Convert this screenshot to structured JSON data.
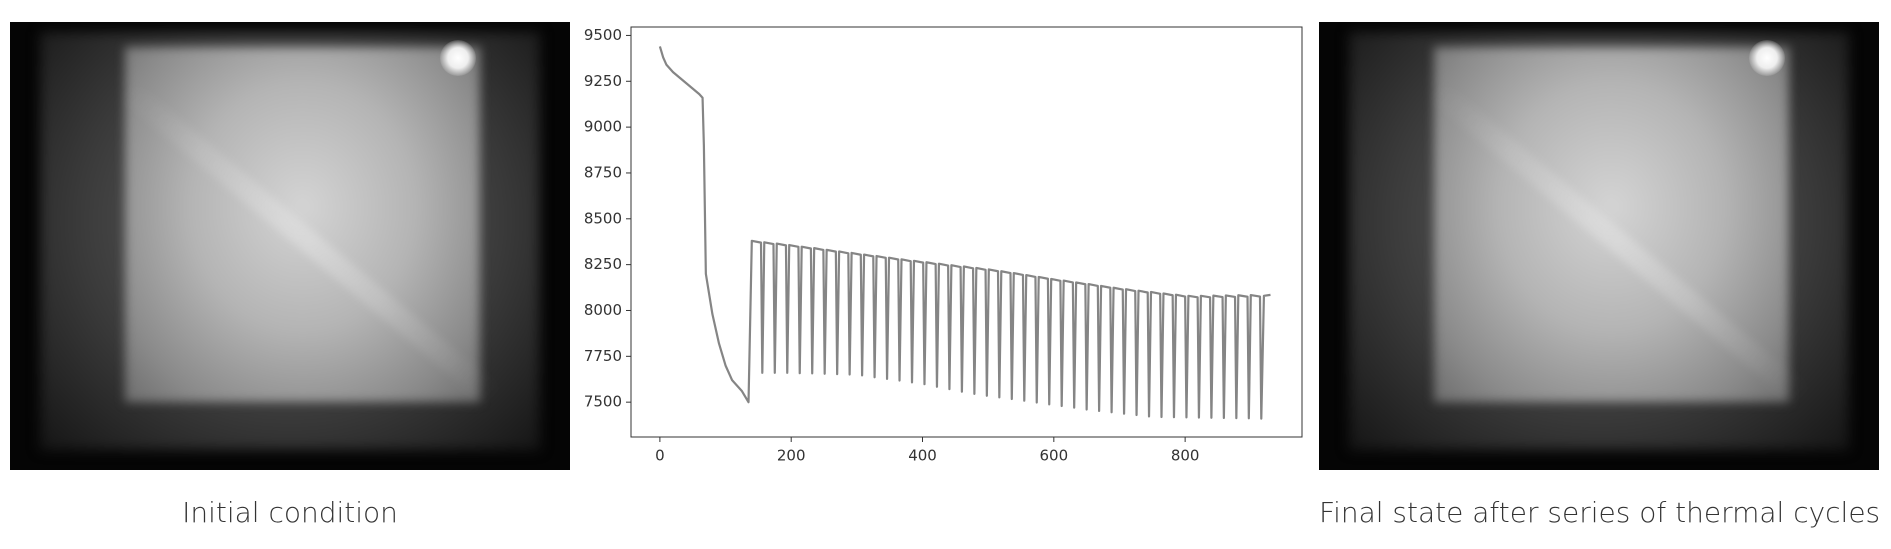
{
  "chart_data": {
    "type": "line",
    "x": [
      0,
      5,
      10,
      20,
      30,
      40,
      50,
      60,
      65,
      67,
      70,
      80,
      90,
      100,
      110,
      125,
      135,
      140,
      154,
      156,
      159,
      173,
      175,
      178,
      192,
      194,
      197,
      211,
      213,
      216,
      230,
      232,
      235,
      249,
      251,
      254,
      268,
      270,
      273,
      287,
      289,
      292,
      306,
      308,
      311,
      325,
      327,
      330,
      344,
      346,
      349,
      363,
      365,
      368,
      382,
      384,
      387,
      401,
      403,
      406,
      420,
      422,
      425,
      439,
      441,
      444,
      458,
      460,
      463,
      477,
      479,
      482,
      496,
      498,
      501,
      515,
      517,
      520,
      534,
      536,
      539,
      553,
      555,
      558,
      572,
      574,
      577,
      591,
      593,
      596,
      610,
      612,
      615,
      629,
      631,
      634,
      648,
      650,
      653,
      667,
      669,
      672,
      686,
      688,
      691,
      705,
      707,
      710,
      724,
      726,
      729,
      743,
      745,
      748,
      762,
      764,
      767,
      781,
      783,
      786,
      800,
      802,
      805,
      819,
      821,
      824,
      838,
      840,
      843,
      857,
      859,
      862,
      876,
      878,
      881,
      895,
      897,
      900,
      914,
      916,
      920,
      930
    ],
    "values": [
      9440,
      9380,
      9340,
      9300,
      9270,
      9240,
      9210,
      9180,
      9160,
      8900,
      8200,
      7980,
      7820,
      7700,
      7620,
      7560,
      7500,
      8380,
      8370,
      7660,
      8372,
      8362,
      7660,
      8365,
      8355,
      7660,
      8357,
      8347,
      7658,
      8348,
      8338,
      7657,
      8340,
      8330,
      7655,
      8331,
      8321,
      7653,
      8322,
      8312,
      7651,
      8314,
      8304,
      7646,
      8305,
      8295,
      7636,
      8297,
      8287,
      7627,
      8288,
      8278,
      7618,
      8279,
      8269,
      7608,
      8271,
      8261,
      7598,
      8263,
      8253,
      7584,
      8255,
      8245,
      7571,
      8247,
      8237,
      7557,
      8240,
      8230,
      7545,
      8232,
      8222,
      7535,
      8224,
      8214,
      7526,
      8214,
      8204,
      7517,
      8204,
      8194,
      7508,
      8193,
      8183,
      7498,
      8183,
      8173,
      7488,
      8172,
      8162,
      7479,
      8163,
      8153,
      7470,
      8153,
      8143,
      7460,
      8144,
      8134,
      7452,
      8134,
      8124,
      7445,
      8124,
      8114,
      7437,
      8116,
      8106,
      7430,
      8108,
      8098,
      7422,
      8101,
      8091,
      7419,
      8093,
      8083,
      7418,
      8086,
      8076,
      7417,
      8080,
      8072,
      7416,
      8080,
      8072,
      7415,
      8081,
      8073,
      7414,
      8082,
      8074,
      7413,
      8083,
      8075,
      7412,
      8084,
      8076,
      7410,
      8080,
      8085
    ],
    "color": "#858585",
    "xlim": [
      -44,
      978
    ],
    "ylim": [
      7310,
      9546
    ],
    "xticks": [
      0,
      200,
      400,
      600,
      800
    ],
    "yticks": [
      7500,
      7750,
      8000,
      8250,
      8500,
      8750,
      9000,
      9250,
      9500
    ]
  },
  "captions": {
    "left": "Initial condition",
    "right": "Final state after series of thermal cycles"
  }
}
